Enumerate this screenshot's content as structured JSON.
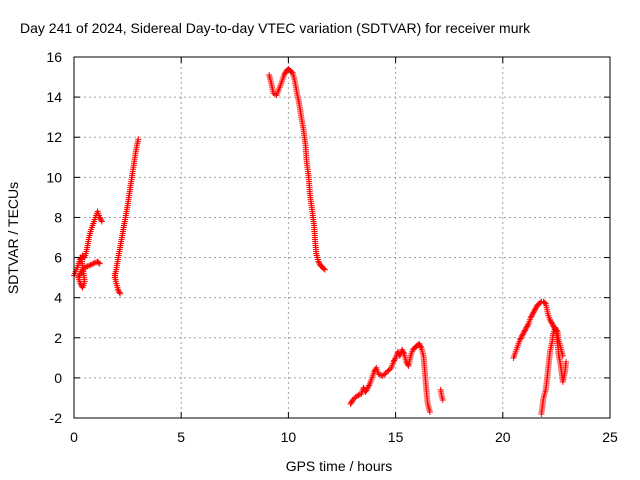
{
  "chart_data": {
    "type": "scatter",
    "title": "Day 241 of 2024, Sidereal Day-to-day VTEC variation (SDTVAR) for receiver murk",
    "xlabel": "GPS time / hours",
    "ylabel": "SDTVAR / TECUs",
    "xlim": [
      0,
      25
    ],
    "ylim": [
      -2,
      16
    ],
    "xticks": [
      "0",
      "5",
      "10",
      "15",
      "20",
      "25"
    ],
    "yticks": [
      "-2",
      "0",
      "2",
      "4",
      "6",
      "8",
      "10",
      "12",
      "14",
      "16"
    ],
    "grid": true,
    "marker": "+",
    "marker_color": "#ff0000",
    "series": [
      {
        "segments": [
          [
            [
              0.0,
              5.1
            ],
            [
              0.15,
              5.5
            ],
            [
              0.25,
              5.8
            ],
            [
              0.3,
              6.0
            ],
            [
              0.35,
              5.9
            ],
            [
              0.4,
              5.6
            ],
            [
              0.45,
              5.2
            ],
            [
              0.5,
              4.8
            ],
            [
              0.4,
              4.5
            ],
            [
              0.3,
              4.7
            ],
            [
              0.2,
              5.0
            ],
            [
              0.35,
              5.3
            ],
            [
              0.5,
              5.5
            ],
            [
              0.7,
              5.6
            ],
            [
              0.9,
              5.7
            ],
            [
              1.1,
              5.8
            ],
            [
              1.2,
              5.7
            ]
          ],
          [
            [
              0.3,
              5.8
            ],
            [
              0.4,
              6.1
            ],
            [
              0.5,
              6.0
            ],
            [
              0.6,
              6.4
            ],
            [
              0.7,
              7.0
            ],
            [
              0.8,
              7.4
            ],
            [
              0.9,
              7.7
            ],
            [
              1.0,
              8.0
            ],
            [
              1.1,
              8.3
            ],
            [
              1.2,
              8.0
            ],
            [
              1.3,
              7.8
            ]
          ],
          [
            [
              1.9,
              5.2
            ],
            [
              1.95,
              4.8
            ],
            [
              2.05,
              4.4
            ],
            [
              2.15,
              4.2
            ]
          ],
          [
            [
              1.9,
              5.0
            ],
            [
              2.0,
              5.6
            ],
            [
              2.1,
              6.2
            ],
            [
              2.2,
              6.8
            ],
            [
              2.3,
              7.4
            ],
            [
              2.4,
              8.0
            ],
            [
              2.5,
              8.6
            ],
            [
              2.6,
              9.3
            ],
            [
              2.7,
              10.0
            ],
            [
              2.8,
              10.7
            ],
            [
              2.9,
              11.4
            ],
            [
              3.0,
              11.9
            ]
          ],
          [
            [
              9.1,
              15.1
            ],
            [
              9.2,
              14.7
            ],
            [
              9.3,
              14.2
            ],
            [
              9.45,
              14.1
            ],
            [
              9.6,
              14.5
            ],
            [
              9.7,
              14.8
            ],
            [
              9.8,
              15.1
            ],
            [
              9.9,
              15.3
            ],
            [
              10.0,
              15.4
            ],
            [
              10.1,
              15.3
            ],
            [
              10.2,
              15.2
            ],
            [
              10.3,
              14.8
            ],
            [
              10.4,
              14.2
            ],
            [
              10.5,
              13.7
            ],
            [
              10.6,
              13.0
            ],
            [
              10.7,
              12.4
            ],
            [
              10.8,
              11.6
            ],
            [
              10.85,
              10.8
            ],
            [
              10.95,
              10.0
            ],
            [
              11.0,
              9.2
            ],
            [
              11.1,
              8.4
            ],
            [
              11.2,
              7.6
            ],
            [
              11.25,
              6.8
            ],
            [
              11.3,
              6.2
            ],
            [
              11.4,
              5.8
            ],
            [
              11.5,
              5.6
            ],
            [
              11.6,
              5.5
            ],
            [
              11.7,
              5.4
            ]
          ],
          [
            [
              12.9,
              -1.3
            ],
            [
              13.0,
              -1.1
            ],
            [
              13.2,
              -0.9
            ],
            [
              13.4,
              -0.8
            ],
            [
              13.5,
              -0.5
            ],
            [
              13.6,
              -0.7
            ],
            [
              13.8,
              -0.3
            ],
            [
              13.9,
              0.0
            ],
            [
              14.0,
              0.3
            ],
            [
              14.1,
              0.5
            ],
            [
              14.2,
              0.2
            ],
            [
              14.4,
              0.1
            ],
            [
              14.6,
              0.3
            ],
            [
              14.8,
              0.5
            ],
            [
              14.9,
              0.8
            ],
            [
              15.0,
              1.0
            ],
            [
              15.1,
              1.3
            ],
            [
              15.2,
              1.1
            ],
            [
              15.3,
              1.4
            ],
            [
              15.4,
              1.2
            ],
            [
              15.5,
              0.8
            ],
            [
              15.6,
              0.6
            ],
            [
              15.7,
              1.1
            ],
            [
              15.8,
              1.4
            ],
            [
              15.9,
              1.5
            ],
            [
              16.0,
              1.6
            ],
            [
              16.1,
              1.7
            ],
            [
              16.2,
              1.5
            ],
            [
              16.3,
              1.1
            ],
            [
              16.35,
              0.5
            ],
            [
              16.4,
              -0.2
            ],
            [
              16.45,
              -0.8
            ],
            [
              16.5,
              -1.3
            ],
            [
              16.6,
              -1.7
            ]
          ],
          [
            [
              17.1,
              -0.6
            ],
            [
              17.15,
              -0.9
            ],
            [
              17.2,
              -1.1
            ]
          ],
          [
            [
              20.5,
              1.0
            ],
            [
              20.6,
              1.3
            ],
            [
              20.7,
              1.6
            ],
            [
              20.8,
              1.9
            ],
            [
              20.9,
              2.1
            ],
            [
              21.0,
              2.3
            ],
            [
              21.1,
              2.5
            ],
            [
              21.2,
              2.7
            ],
            [
              21.3,
              3.0
            ],
            [
              21.4,
              3.2
            ],
            [
              21.5,
              3.4
            ],
            [
              21.6,
              3.6
            ],
            [
              21.7,
              3.7
            ],
            [
              21.8,
              3.8
            ],
            [
              21.9,
              3.8
            ],
            [
              22.0,
              3.7
            ],
            [
              22.05,
              3.5
            ],
            [
              22.1,
              3.2
            ],
            [
              22.2,
              2.9
            ],
            [
              22.3,
              2.7
            ],
            [
              22.4,
              2.5
            ],
            [
              22.5,
              2.3
            ],
            [
              22.55,
              1.8
            ],
            [
              22.6,
              1.2
            ],
            [
              22.7,
              0.6
            ],
            [
              22.75,
              0.2
            ],
            [
              22.8,
              -0.2
            ],
            [
              22.9,
              0.3
            ],
            [
              22.95,
              0.8
            ]
          ],
          [
            [
              21.8,
              -1.8
            ],
            [
              21.85,
              -1.4
            ],
            [
              21.9,
              -1.0
            ],
            [
              22.0,
              -0.6
            ],
            [
              22.05,
              -0.2
            ],
            [
              22.1,
              0.3
            ],
            [
              22.15,
              0.8
            ],
            [
              22.2,
              1.3
            ],
            [
              22.3,
              1.8
            ],
            [
              22.35,
              2.2
            ],
            [
              22.45,
              2.5
            ],
            [
              22.55,
              2.3
            ],
            [
              22.6,
              1.9
            ],
            [
              22.7,
              1.5
            ],
            [
              22.8,
              1.1
            ]
          ]
        ]
      }
    ]
  }
}
